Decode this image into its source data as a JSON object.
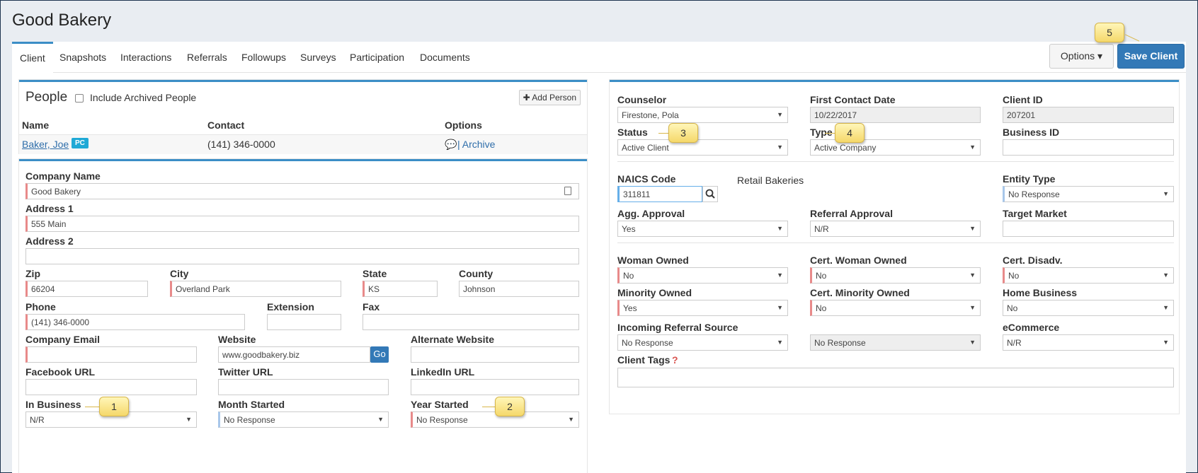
{
  "header": {
    "title": "Good Bakery"
  },
  "tabs": [
    "Client",
    "Snapshots",
    "Interactions",
    "Referrals",
    "Followups",
    "Surveys",
    "Participation",
    "Documents"
  ],
  "actions": {
    "options_label": "Options ▾",
    "save_label": "Save Client"
  },
  "people": {
    "title": "People",
    "include_archived_label": "Include Archived People",
    "add_person_label": "✚ Add Person",
    "columns": [
      "Name",
      "Contact",
      "Options"
    ],
    "rows": [
      {
        "name": "Baker, Joe",
        "badge": "PC",
        "contact": "(141) 346-0000",
        "options": "| Archive"
      }
    ]
  },
  "company": {
    "company_name_label": "Company Name",
    "company_name": "Good Bakery",
    "address1_label": "Address 1",
    "address1": "555 Main",
    "address2_label": "Address 2",
    "address2": "",
    "zip_label": "Zip",
    "zip": "66204",
    "city_label": "City",
    "city": "Overland Park",
    "state_label": "State",
    "state": "KS",
    "county_label": "County",
    "county": "Johnson",
    "phone_label": "Phone",
    "phone": "(141) 346-0000",
    "extension_label": "Extension",
    "extension": "",
    "fax_label": "Fax",
    "fax": "",
    "email_label": "Company Email",
    "email": "",
    "website_label": "Website",
    "website": "www.goodbakery.biz",
    "go_label": "Go",
    "alt_website_label": "Alternate Website",
    "alt_website": "",
    "facebook_label": "Facebook URL",
    "facebook": "",
    "twitter_label": "Twitter URL",
    "twitter": "",
    "linkedin_label": "LinkedIn URL",
    "linkedin": "",
    "in_business_label": "In Business",
    "in_business": "N/R",
    "month_started_label": "Month Started",
    "month_started": "No Response",
    "year_started_label": "Year Started",
    "year_started": "No Response"
  },
  "client": {
    "counselor_label": "Counselor",
    "counselor": "Firestone, Pola",
    "first_contact_label": "First Contact Date",
    "first_contact": "10/22/2017",
    "client_id_label": "Client ID",
    "client_id": "207201",
    "status_label": "Status",
    "status": "Active Client",
    "type_label": "Type",
    "type": "Active Company",
    "business_id_label": "Business ID",
    "business_id": "",
    "naics_label": "NAICS Code",
    "naics": "311811",
    "naics_desc": "Retail Bakeries",
    "entity_type_label": "Entity Type",
    "entity_type": "No Response",
    "agg_approval_label": "Agg. Approval",
    "agg_approval": "Yes",
    "referral_approval_label": "Referral Approval",
    "referral_approval": "N/R",
    "target_market_label": "Target Market",
    "target_market": "",
    "woman_owned_label": "Woman Owned",
    "woman_owned": "No",
    "cert_woman_owned_label": "Cert. Woman Owned",
    "cert_woman_owned": "No",
    "cert_disadv_label": "Cert. Disadv.",
    "cert_disadv": "No",
    "minority_owned_label": "Minority Owned",
    "minority_owned": "Yes",
    "cert_minority_owned_label": "Cert. Minority Owned",
    "cert_minority_owned": "No",
    "home_business_label": "Home Business",
    "home_business": "No",
    "incoming_referral_label": "Incoming Referral Source",
    "incoming_referral": "No Response",
    "incoming_referral_detail": "No Response",
    "ecommerce_label": "eCommerce",
    "ecommerce": "N/R",
    "client_tags_label": "Client Tags",
    "client_tags_help": "?",
    "client_tags": ""
  },
  "callouts": [
    "1",
    "2",
    "3",
    "4",
    "5"
  ],
  "colors": {
    "accent": "#3b8ec6",
    "save_button": "#3379b7",
    "required_marker": "#e88a8a",
    "callout": "#f5d86a"
  }
}
